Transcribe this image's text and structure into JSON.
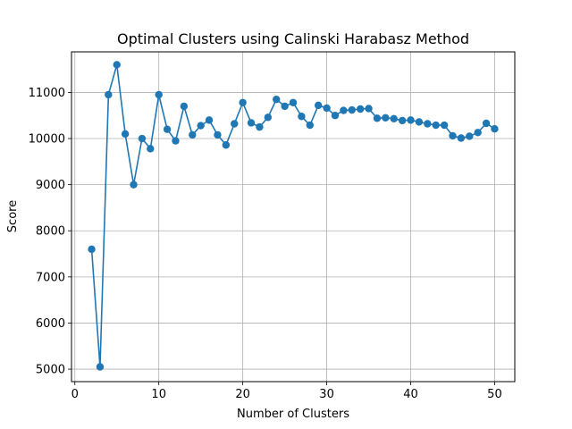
{
  "chart_data": {
    "type": "line",
    "title": "Optimal Clusters using Calinski Harabasz Method",
    "xlabel": "Number of Clusters",
    "ylabel": "Score",
    "xlim": [
      -0.4,
      52.4
    ],
    "ylim": [
      4730,
      11880
    ],
    "xticks": [
      0,
      10,
      20,
      30,
      40,
      50
    ],
    "yticks": [
      5000,
      6000,
      7000,
      8000,
      9000,
      10000,
      11000
    ],
    "grid": true,
    "marker": "circle",
    "color": "#1f77b4",
    "x": [
      2,
      3,
      4,
      5,
      6,
      7,
      8,
      9,
      10,
      11,
      12,
      13,
      14,
      15,
      16,
      17,
      18,
      19,
      20,
      21,
      22,
      23,
      24,
      25,
      26,
      27,
      28,
      29,
      30,
      31,
      32,
      33,
      34,
      35,
      36,
      37,
      38,
      39,
      40,
      41,
      42,
      43,
      44,
      45,
      46,
      47,
      48,
      49,
      50
    ],
    "y": [
      7600,
      5050,
      10950,
      11600,
      10100,
      9000,
      10000,
      9780,
      10950,
      10200,
      9950,
      10700,
      10080,
      10280,
      10400,
      10080,
      9860,
      10320,
      10780,
      10340,
      10250,
      10460,
      10850,
      10700,
      10780,
      10480,
      10290,
      10720,
      10660,
      10500,
      10610,
      10620,
      10640,
      10650,
      10440,
      10450,
      10430,
      10390,
      10400,
      10360,
      10320,
      10290,
      10290,
      10060,
      10010,
      10050,
      10130,
      10330,
      10210
    ]
  }
}
